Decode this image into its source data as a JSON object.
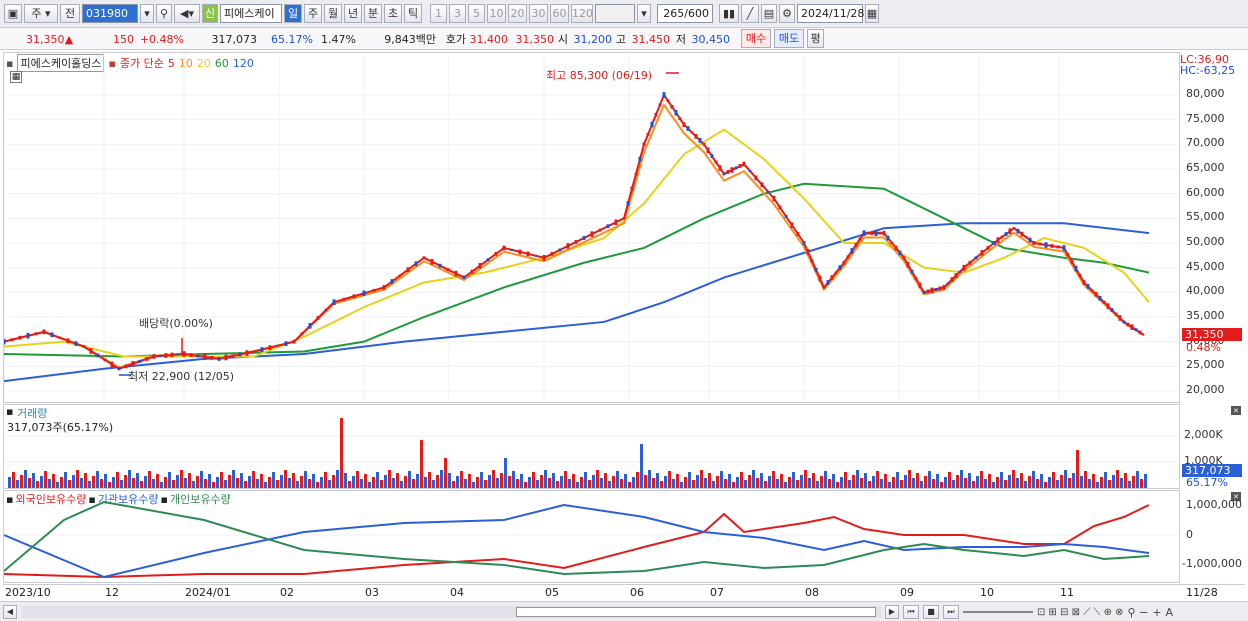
{
  "toolbar": {
    "type_select": "주",
    "prev_label": "전",
    "code": "031980",
    "stock_badge": "신",
    "stock_name": "피에스케이",
    "periods": [
      "일",
      "주",
      "월",
      "년",
      "분",
      "초",
      "틱"
    ],
    "intervals": [
      "1",
      "3",
      "5",
      "10",
      "20",
      "30",
      "60",
      "120"
    ],
    "count": "265",
    "count_total": "/600",
    "date": "2024/11/28"
  },
  "summary": {
    "price": "31,350",
    "arrow": "▲",
    "change": "150",
    "change_pct": "+0.48%",
    "volume": "317,073",
    "vol_ratio": "65.17%",
    "turnover": "1.47%",
    "amount": "9,843백만",
    "quote_label": "호가",
    "ask": "31,400",
    "bid": "31,350",
    "open_label": "시",
    "open": "31,200",
    "high_label": "고",
    "high": "31,450",
    "low_label": "저",
    "low": "30,450",
    "buy_label": "매수",
    "sell_label": "매도",
    "eval_label": "평"
  },
  "price_panel": {
    "title": "피에스케이홀딩스",
    "indicator": "종가 단순",
    "ma": [
      {
        "label": "5",
        "color": "#e21b1b"
      },
      {
        "label": "10",
        "color": "#ff8c1a"
      },
      {
        "label": "20",
        "color": "#e6d21a"
      },
      {
        "label": "60",
        "color": "#1f9a3a"
      },
      {
        "label": "120",
        "color": "#2a5fd8"
      }
    ],
    "lc": "LC:36,90",
    "hc": "HC:-63,25",
    "high_note": "최고 85,300 (06/19)",
    "low_note": "최저 22,900 (12/05)",
    "dividend_note": "배당락(0.00%)",
    "price_tag": "31,350",
    "pct_tag": "0.48%",
    "y_ticks": [
      "80,000",
      "75,000",
      "70,000",
      "65,000",
      "60,000",
      "55,000",
      "50,000",
      "45,000",
      "40,000",
      "35,000",
      "30,000",
      "25,000",
      "20,000"
    ]
  },
  "volume_panel": {
    "title": "거래량",
    "value": "317,073주(65.17%)",
    "y_ticks": [
      "2,000K",
      "1,000K"
    ],
    "tag": "317,073",
    "tag_pct": "65.17%"
  },
  "holdings_panel": {
    "series": [
      {
        "label": "외국인보유수량",
        "color": "#e21b1b"
      },
      {
        "label": "기관보유수량",
        "color": "#2a5fd8"
      },
      {
        "label": "개인보유수량",
        "color": "#2d8a55"
      }
    ],
    "y_ticks": [
      "1,000,000",
      "0",
      "-1,000,000"
    ]
  },
  "x_axis": {
    "labels": [
      "2023/10",
      "12",
      "2024/01",
      "02",
      "03",
      "04",
      "05",
      "06",
      "07",
      "08",
      "09",
      "10",
      "11"
    ],
    "end_label": "11/28"
  },
  "colors": {
    "up": "#e21b1b",
    "down": "#1d4fd8"
  }
}
